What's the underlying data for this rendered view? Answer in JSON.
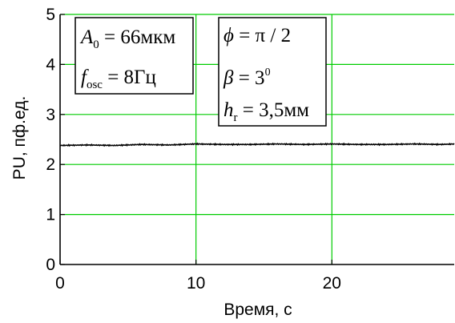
{
  "chart_data": {
    "type": "line",
    "xlabel": "Время, с",
    "ylabel": "PU, пф.ед.",
    "xlim": [
      0,
      29
    ],
    "ylim": [
      0,
      5
    ],
    "x_ticks": [
      "0",
      "10",
      "20"
    ],
    "y_ticks": [
      "0",
      "1",
      "2",
      "3",
      "4",
      "5"
    ],
    "grid": true,
    "series": [
      {
        "x": [
          0,
          2,
          4,
          6,
          8,
          10,
          12,
          14,
          16,
          18,
          20,
          22,
          24,
          26,
          28,
          29
        ],
        "values": [
          2.38,
          2.39,
          2.38,
          2.4,
          2.39,
          2.41,
          2.4,
          2.4,
          2.41,
          2.4,
          2.41,
          2.4,
          2.4,
          2.41,
          2.4,
          2.41
        ],
        "color": "#000000"
      }
    ],
    "annotations": [
      {
        "lines": [
          {
            "var": "A",
            "sub": "0",
            "rest": " = 66мкм"
          },
          {
            "var": "f",
            "sub": "osc",
            "rest": " = 8Гц"
          }
        ]
      },
      {
        "lines": [
          {
            "var": "ϕ",
            "rest": " = π / 2"
          },
          {
            "var": "β",
            "rest": " = 3",
            "sup": "0"
          },
          {
            "var": "h",
            "sub": "r",
            "rest": " = 3,5мм"
          }
        ]
      }
    ]
  },
  "colors": {
    "grid": "#00cc00",
    "axis": "#000000",
    "line": "#000000"
  }
}
